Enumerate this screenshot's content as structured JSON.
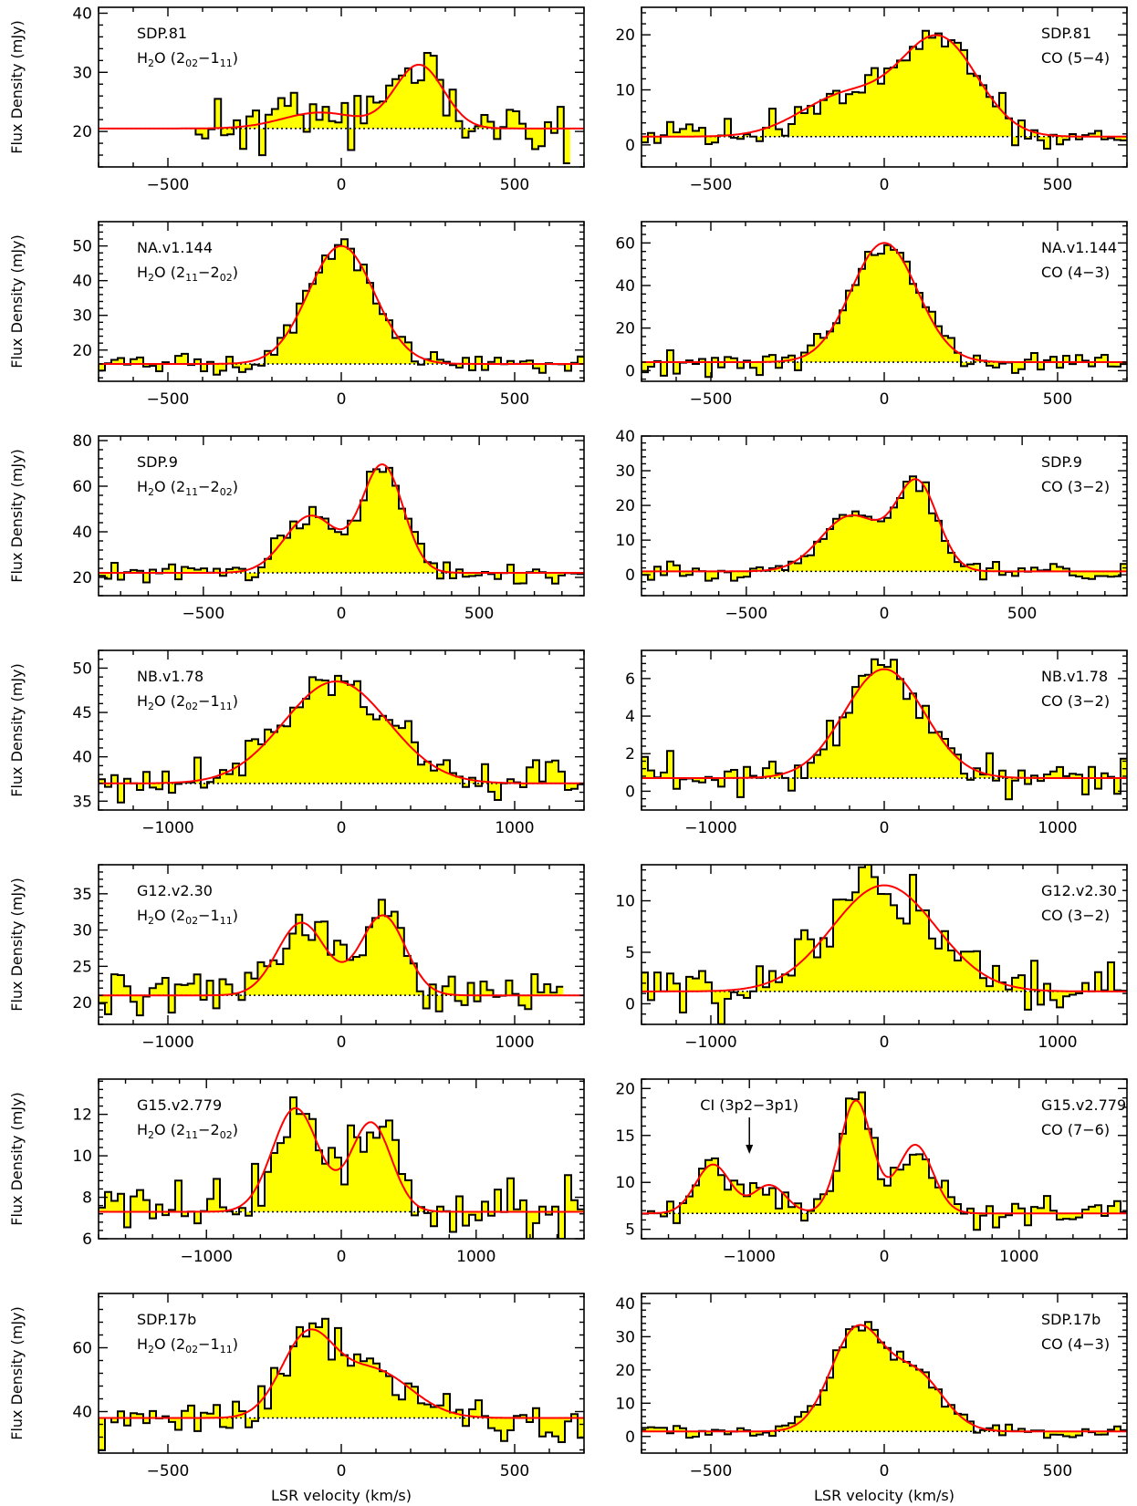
{
  "figure": {
    "ylabel": "Flux Density (mJy)",
    "xlabel": "LSR velocity (km/s)",
    "colors": {
      "fill": "#ffff00",
      "fit": "#ff0000",
      "histogram": "#000000",
      "baseline": "#000000"
    }
  },
  "chart_data": [
    {
      "type": "area",
      "name": "SDP.81",
      "line": "H2O (202-111)",
      "line_parts": [
        "H",
        "2",
        "O (2",
        "02",
        "-1",
        "11",
        ")"
      ],
      "xlim": [
        -700,
        700
      ],
      "ylim": [
        14,
        41
      ],
      "xticks": [
        -500,
        0,
        500
      ],
      "yticks": [
        20,
        30,
        40
      ],
      "baseline": 20.5,
      "label_pos": "left",
      "data_range": [
        -420,
        660
      ],
      "noise": 4.5,
      "seed": 11,
      "components": [
        {
          "a": 2.7,
          "c": -60,
          "s": 110
        },
        {
          "a": 10.7,
          "c": 225,
          "s": 70
        }
      ]
    },
    {
      "type": "area",
      "name": "SDP.81",
      "line": "CO (5-4)",
      "line_parts": [
        "CO (5-4)"
      ],
      "xlim": [
        -700,
        700
      ],
      "ylim": [
        -4,
        25
      ],
      "xticks": [
        -500,
        0,
        500
      ],
      "yticks": [
        0,
        10,
        20
      ],
      "baseline": 1.5,
      "label_pos": "right",
      "data_range": [
        -700,
        700
      ],
      "noise": 2.5,
      "seed": 12,
      "components": [
        {
          "a": 7.5,
          "c": -110,
          "s": 130
        },
        {
          "a": 17.5,
          "c": 160,
          "s": 110
        }
      ]
    },
    {
      "type": "area",
      "name": "NA.v1.144",
      "line": "H2O (211-202)",
      "line_parts": [
        "H",
        "2",
        "O (2",
        "11",
        "-2",
        "02",
        ")"
      ],
      "xlim": [
        -700,
        700
      ],
      "ylim": [
        11,
        57
      ],
      "xticks": [
        -500,
        0,
        500
      ],
      "yticks": [
        20,
        30,
        40,
        50
      ],
      "baseline": 16,
      "label_pos": "left",
      "data_range": [
        -700,
        700
      ],
      "noise": 2.2,
      "seed": 21,
      "components": [
        {
          "a": 34,
          "c": 0,
          "s": 95
        }
      ]
    },
    {
      "type": "area",
      "name": "NA.v1.144",
      "line": "CO (4-3)",
      "line_parts": [
        "CO (4-3)"
      ],
      "xlim": [
        -700,
        700
      ],
      "ylim": [
        -5,
        70
      ],
      "xticks": [
        -500,
        0,
        500
      ],
      "yticks": [
        0,
        20,
        40,
        60
      ],
      "baseline": 4,
      "label_pos": "right",
      "data_range": [
        -700,
        700
      ],
      "noise": 4.5,
      "seed": 22,
      "components": [
        {
          "a": 56,
          "c": 0,
          "s": 95
        }
      ]
    },
    {
      "type": "area",
      "name": "SDP.9",
      "line": "H2O (211-202)",
      "line_parts": [
        "H",
        "2",
        "O (2",
        "11",
        "-2",
        "02",
        ")"
      ],
      "xlim": [
        -880,
        880
      ],
      "ylim": [
        12,
        82
      ],
      "xticks": [
        -500,
        0,
        500
      ],
      "yticks": [
        20,
        40,
        60,
        80
      ],
      "baseline": 22,
      "label_pos": "left",
      "data_range": [
        -880,
        880
      ],
      "noise": 4,
      "seed": 31,
      "components": [
        {
          "a": 25,
          "c": -110,
          "s": 95
        },
        {
          "a": 47,
          "c": 150,
          "s": 75
        }
      ]
    },
    {
      "type": "area",
      "name": "SDP.9",
      "line": "CO (3-2)",
      "line_parts": [
        "CO (3-2)"
      ],
      "xlim": [
        -880,
        880
      ],
      "ylim": [
        -6,
        40
      ],
      "xticks": [
        -500,
        0,
        500
      ],
      "yticks": [
        0,
        10,
        20,
        30,
        40
      ],
      "baseline": 1,
      "label_pos": "right",
      "data_range": [
        -880,
        880
      ],
      "noise": 2,
      "seed": 32,
      "components": [
        {
          "a": 16,
          "c": -120,
          "s": 110
        },
        {
          "a": 25,
          "c": 120,
          "s": 75
        }
      ]
    },
    {
      "type": "area",
      "name": "NB.v1.78",
      "line": "H2O (202-111)",
      "line_parts": [
        "H",
        "2",
        "O (2",
        "02",
        "-1",
        "11",
        ")"
      ],
      "xlim": [
        -1400,
        1400
      ],
      "ylim": [
        34,
        52
      ],
      "xticks": [
        -1000,
        0,
        1000
      ],
      "yticks": [
        35,
        40,
        45,
        50
      ],
      "baseline": 37,
      "label_pos": "left",
      "data_range": [
        -1400,
        1400
      ],
      "noise": 2,
      "seed": 41,
      "components": [
        {
          "a": 11.5,
          "c": -30,
          "s": 300
        }
      ]
    },
    {
      "type": "area",
      "name": "NB.v1.78",
      "line": "CO (3-2)",
      "line_parts": [
        "CO (3-2)"
      ],
      "xlim": [
        -1400,
        1400
      ],
      "ylim": [
        -1,
        7.5
      ],
      "xticks": [
        -1000,
        0,
        1000
      ],
      "yticks": [
        0,
        2,
        4,
        6
      ],
      "baseline": 0.7,
      "label_pos": "right",
      "data_range": [
        -1400,
        1400
      ],
      "noise": 0.9,
      "seed": 42,
      "components": [
        {
          "a": 5.8,
          "c": 0,
          "s": 230
        }
      ]
    },
    {
      "type": "area",
      "name": "G12.v2.30",
      "line": "H2O (202-111)",
      "line_parts": [
        "H",
        "2",
        "O (2",
        "02",
        "-1",
        "11",
        ")"
      ],
      "xlim": [
        -1400,
        1400
      ],
      "ylim": [
        17,
        39
      ],
      "xticks": [
        -1000,
        0,
        1000
      ],
      "yticks": [
        20,
        25,
        30,
        35
      ],
      "baseline": 21,
      "label_pos": "left",
      "data_range": [
        -1400,
        1280
      ],
      "noise": 2.8,
      "seed": 51,
      "components": [
        {
          "a": 10,
          "c": -230,
          "s": 140
        },
        {
          "a": 11,
          "c": 240,
          "s": 130
        }
      ]
    },
    {
      "type": "area",
      "name": "G12.v2.30",
      "line": "CO (3-2)",
      "line_parts": [
        "CO (3-2)"
      ],
      "xlim": [
        -1400,
        1400
      ],
      "ylim": [
        -2,
        13.5
      ],
      "xticks": [
        -1000,
        0,
        1000
      ],
      "yticks": [
        0,
        5,
        10
      ],
      "baseline": 1.2,
      "label_pos": "right",
      "data_range": [
        -1400,
        1400
      ],
      "noise": 3,
      "seed": 52,
      "components": [
        {
          "a": 10.3,
          "c": 0,
          "s": 300
        }
      ]
    },
    {
      "type": "area",
      "name": "G15.v2.779",
      "line": "H2O (211-202)",
      "line_parts": [
        "H",
        "2",
        "O (2",
        "11",
        "-2",
        "02",
        ")"
      ],
      "xlim": [
        -1800,
        1800
      ],
      "ylim": [
        6,
        13.7
      ],
      "xticks": [
        -1000,
        0,
        1000
      ],
      "yticks": [
        6,
        8,
        10,
        12
      ],
      "baseline": 7.3,
      "label_pos": "left",
      "data_range": [
        -1800,
        1800
      ],
      "noise": 1.3,
      "seed": 61,
      "components": [
        {
          "a": 5,
          "c": -340,
          "s": 170
        },
        {
          "a": 4.3,
          "c": 220,
          "s": 150
        }
      ]
    },
    {
      "type": "area",
      "name": "G15.v2.779",
      "line": "CO (7-6)",
      "line_parts": [
        "CO (7-6)"
      ],
      "xlim": [
        -1800,
        1800
      ],
      "ylim": [
        4,
        21
      ],
      "xticks": [
        -1000,
        0,
        1000
      ],
      "yticks": [
        5,
        10,
        15,
        20
      ],
      "baseline": 6.7,
      "label_pos": "right",
      "data_range": [
        -1800,
        1800
      ],
      "noise": 1.3,
      "seed": 62,
      "components": [
        {
          "a": 5.2,
          "c": -1270,
          "s": 130
        },
        {
          "a": 3,
          "c": -850,
          "s": 120
        },
        {
          "a": 12,
          "c": -210,
          "s": 120
        },
        {
          "a": 7.3,
          "c": 230,
          "s": 130
        }
      ],
      "annotation": {
        "text": "CI (3p2-3p1)",
        "x": -1000
      }
    },
    {
      "type": "area",
      "name": "SDP.17b",
      "line": "H2O (202-111)",
      "line_parts": [
        "H",
        "2",
        "O (2",
        "02",
        "-1",
        "11",
        ")"
      ],
      "xlim": [
        -700,
        700
      ],
      "ylim": [
        27,
        77
      ],
      "xticks": [
        -500,
        0,
        500
      ],
      "yticks": [
        40,
        60
      ],
      "baseline": 38,
      "label_pos": "left",
      "data_range": [
        -700,
        700
      ],
      "noise": 6,
      "seed": 71,
      "components": [
        {
          "a": 24,
          "c": -100,
          "s": 75
        },
        {
          "a": 15,
          "c": 90,
          "s": 110
        }
      ]
    },
    {
      "type": "area",
      "name": "SDP.17b",
      "line": "CO (4-3)",
      "line_parts": [
        "CO (4-3)"
      ],
      "xlim": [
        -700,
        700
      ],
      "ylim": [
        -5,
        43
      ],
      "xticks": [
        -500,
        0,
        500
      ],
      "yticks": [
        0,
        10,
        20,
        30,
        40
      ],
      "baseline": 1.5,
      "label_pos": "right",
      "data_range": [
        -700,
        700
      ],
      "noise": 2,
      "seed": 72,
      "components": [
        {
          "a": 30,
          "c": -80,
          "s": 75
        },
        {
          "a": 17,
          "c": 90,
          "s": 80
        }
      ]
    }
  ]
}
